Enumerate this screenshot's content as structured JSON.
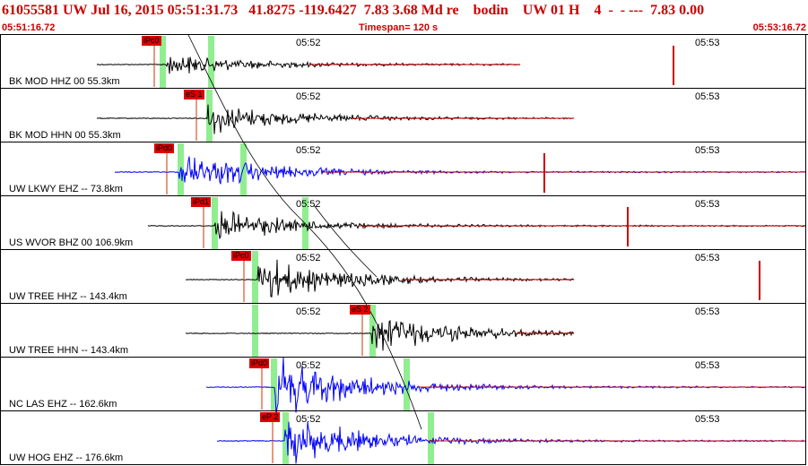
{
  "header": {
    "text": "61055581 UW Jul 16, 2015 05:51:31.73   41.8275 -119.6427  7.83 3.68 Md re    bodin    UW 01 H    4  -  - ---  7.83 0.00"
  },
  "timebar": {
    "start": "05:51:16.72",
    "span": "Timespan= 120 s",
    "end": "05:53:16.72"
  },
  "colors": {
    "header_text": "#cc0000",
    "pick_flag": "#dd0000",
    "green_window": "#90ee90",
    "trace_black": "#000000",
    "trace_blue": "#0000ff",
    "trace_red": "#cc0000"
  },
  "tick_labels": [
    "05:52",
    "05:53"
  ],
  "channels": [
    {
      "label": "BK MOD HHZ 00 55.3km",
      "pick": "iPc0",
      "color": "black"
    },
    {
      "label": "BK MOD HHN 00 55.3km",
      "pick": "eS 1",
      "color": "black"
    },
    {
      "label": "UW LKWY EHZ -- 73.8km",
      "pick": "iPd0",
      "color": "blue"
    },
    {
      "label": "US WVOR BHZ 00 106.9km",
      "pick": "iPd1",
      "color": "black"
    },
    {
      "label": "UW TREE HHZ -- 143.4km",
      "pick": "iPc0",
      "color": "black"
    },
    {
      "label": "UW TREE HHN -- 143.4km",
      "pick": "eS 2",
      "color": "black"
    },
    {
      "label": "NC LAS EHZ -- 162.6km",
      "pick": "iPd0",
      "color": "blue"
    },
    {
      "label": "UW HOG EHZ -- 176.6km",
      "pick": "eP 2",
      "color": "blue"
    }
  ]
}
